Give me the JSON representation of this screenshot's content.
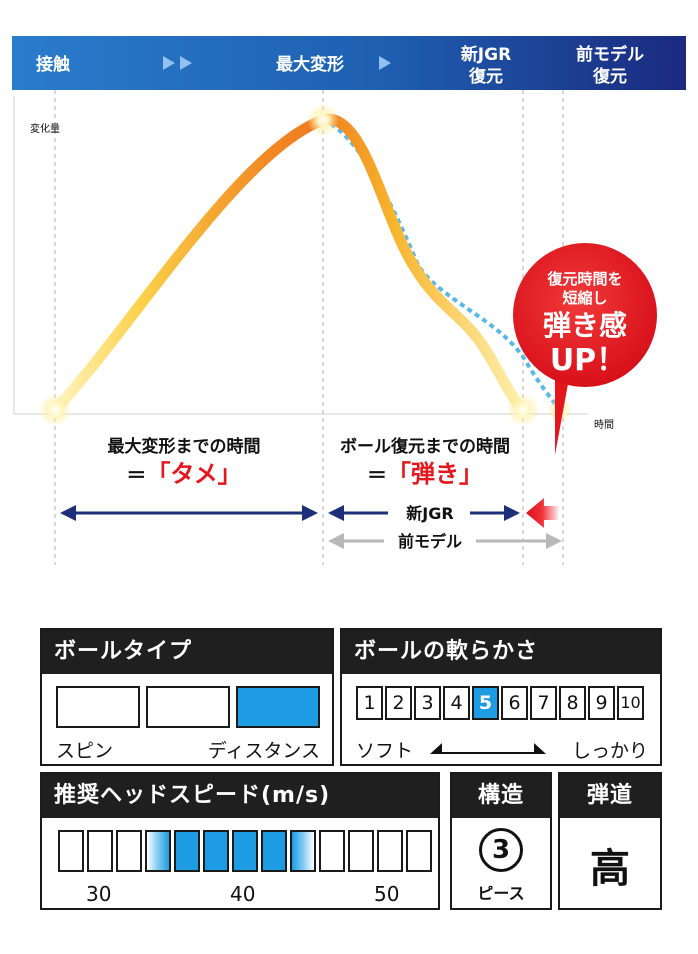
{
  "phases": {
    "contact": "接触",
    "max_deform": "最大変形",
    "new_jgr_recover": [
      "新JGR",
      "復元"
    ],
    "prev_model_recover": [
      "前モデル",
      "復元"
    ]
  },
  "axes": {
    "y_label": "変化量",
    "x_label": "時間"
  },
  "annotations": {
    "tame_line1": "最大変形までの時間",
    "tame_line2_prefix": "＝",
    "tame_line2_quote": "「タメ」",
    "hajiki_line1": "ボール復元までの時間",
    "hajiki_line2_prefix": "＝",
    "hajiki_line2_quote": "「弾き」",
    "new_jgr_arrow": "新JGR",
    "prev_model_arrow": "前モデル"
  },
  "callout": {
    "line1": "復元時間を",
    "line2": "短縮し",
    "line3": "弾き感",
    "line4": "UP！",
    "color": "#e4161e"
  },
  "specs": {
    "ball_type": {
      "title": "ボールタイプ",
      "left_label": "スピン",
      "right_label": "ディスタンス",
      "selected_index": 2,
      "count": 3
    },
    "softness": {
      "title": "ボールの軟らかさ",
      "scale": [
        "1",
        "2",
        "3",
        "4",
        "5",
        "6",
        "7",
        "8",
        "9",
        "10"
      ],
      "selected": "5",
      "left_label": "ソフト",
      "right_label": "しっかり"
    },
    "head_speed": {
      "title": "推奨ヘッドスピード(m/s)",
      "ticks": [
        "30",
        "40",
        "50"
      ],
      "cells": 13,
      "highlight_from": 3,
      "highlight_to": 8
    },
    "structure": {
      "title": "構造",
      "value": "3",
      "unit": "ピース"
    },
    "trajectory": {
      "title": "弾道",
      "value": "高"
    }
  },
  "colors": {
    "header_left": "#1e6cc0",
    "header_right": "#1d2f8a",
    "arrow_navy": "#1e2f7a",
    "arrow_gray": "#b8b8b8",
    "accent_blue": "#1d9ce4",
    "dashed_blue": "#58b9e8"
  }
}
